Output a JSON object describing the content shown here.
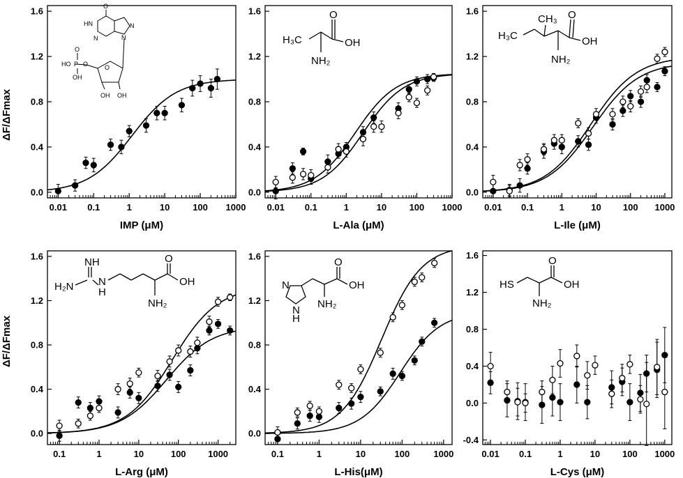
{
  "figure": {
    "ylabel": "ΔF/ΔFmax"
  },
  "chart_data": [
    {
      "type": "scatter",
      "xlabel": "IMP (μM)",
      "x_scale": "log",
      "xlim": [
        0.005,
        1000
      ],
      "ylim": [
        -0.05,
        1.65
      ],
      "x_ticks": [
        0.01,
        0.1,
        1,
        10,
        100,
        1000
      ],
      "x_tick_labels": [
        "0.01",
        "0.1",
        "1",
        "10",
        "100",
        "1000"
      ],
      "y_ticks": [
        0.0,
        0.4,
        0.8,
        1.2,
        1.6
      ],
      "y_tick_labels": [
        "0.0",
        "0.4",
        "0.8",
        "1.2",
        "1.6"
      ],
      "molecule": "IMP",
      "series": [
        {
          "marker": "filled",
          "x": [
            0.01,
            0.03,
            0.06,
            0.1,
            0.3,
            0.6,
            1,
            3,
            6,
            10,
            30,
            60,
            100,
            200,
            300
          ],
          "y": [
            0.01,
            0.06,
            0.26,
            0.24,
            0.42,
            0.4,
            0.54,
            0.59,
            0.7,
            0.7,
            0.77,
            0.92,
            0.96,
            0.92,
            1.0
          ],
          "err": [
            0.06,
            0.05,
            0.05,
            0.06,
            0.05,
            0.06,
            0.05,
            0.06,
            0.06,
            0.06,
            0.06,
            0.07,
            0.07,
            0.08,
            0.09
          ],
          "fit": {
            "max": 1.0,
            "ec50": 1.2,
            "n": 0.7
          }
        }
      ]
    },
    {
      "type": "scatter",
      "xlabel": "L-Ala (μM)",
      "x_scale": "log",
      "xlim": [
        0.005,
        1000
      ],
      "ylim": [
        -0.05,
        1.65
      ],
      "x_ticks": [
        0.01,
        0.1,
        1,
        10,
        100,
        1000
      ],
      "x_tick_labels": [
        "0.01",
        "0.1",
        "1",
        "10",
        "100",
        "1000"
      ],
      "y_ticks": [
        0.0,
        0.4,
        0.8,
        1.2,
        1.6
      ],
      "y_tick_labels": [
        "0.0",
        "0.4",
        "0.8",
        "1.2",
        "1.6"
      ],
      "molecule": "ala",
      "series": [
        {
          "marker": "filled",
          "x": [
            0.01,
            0.03,
            0.06,
            0.1,
            0.3,
            0.6,
            1,
            3,
            6,
            30,
            60,
            100,
            200,
            300
          ],
          "y": [
            0.01,
            0.21,
            0.36,
            0.12,
            0.27,
            0.34,
            0.4,
            0.53,
            0.66,
            0.74,
            0.91,
            0.98,
            1.0,
            1.01
          ],
          "err": [
            0.07,
            0.05,
            0.03,
            0.05,
            0.06,
            0.04,
            0.04,
            0.05,
            0.05,
            0.05,
            0.04,
            0.04,
            0.04,
            0.03
          ],
          "fit": {
            "max": 1.05,
            "ec50": 3.0,
            "n": 0.75
          }
        },
        {
          "marker": "open",
          "x": [
            0.01,
            0.03,
            0.06,
            0.1,
            0.3,
            0.6,
            1,
            3,
            6,
            10,
            30,
            60,
            100,
            200,
            300
          ],
          "y": [
            0.09,
            0.13,
            0.16,
            0.15,
            0.22,
            0.38,
            0.36,
            0.47,
            0.58,
            0.58,
            0.7,
            0.84,
            0.79,
            0.9,
            1.02
          ],
          "err": [
            0.05,
            0.05,
            0.05,
            0.05,
            0.05,
            0.05,
            0.05,
            0.06,
            0.05,
            0.05,
            0.05,
            0.04,
            0.04,
            0.04,
            0.03
          ],
          "fit": {
            "max": 1.05,
            "ec50": 1.8,
            "n": 0.75
          }
        }
      ]
    },
    {
      "type": "scatter",
      "xlabel": "L-Ile (μM)",
      "x_scale": "log",
      "xlim": [
        0.005,
        1600
      ],
      "ylim": [
        -0.05,
        1.65
      ],
      "x_ticks": [
        0.01,
        0.1,
        1,
        10,
        100,
        1000
      ],
      "x_tick_labels": [
        "0.01",
        "0.1",
        "1",
        "10",
        "100",
        "1000"
      ],
      "y_ticks": [
        0.0,
        0.4,
        0.8,
        1.2,
        1.6
      ],
      "y_tick_labels": [
        "0.0",
        "0.4",
        "0.8",
        "1.2",
        "1.6"
      ],
      "molecule": "ile",
      "series": [
        {
          "marker": "filled",
          "x": [
            0.01,
            0.03,
            0.06,
            0.1,
            0.3,
            0.6,
            1,
            3,
            6,
            10,
            30,
            60,
            100,
            200,
            300,
            600,
            1000
          ],
          "y": [
            0.01,
            0.02,
            0.06,
            0.21,
            0.36,
            0.43,
            0.4,
            0.45,
            0.42,
            0.66,
            0.6,
            0.72,
            0.85,
            0.8,
            0.99,
            0.93,
            1.07
          ],
          "err": [
            0.06,
            0.05,
            0.06,
            0.05,
            0.06,
            0.05,
            0.06,
            0.05,
            0.05,
            0.05,
            0.05,
            0.05,
            0.05,
            0.05,
            0.05,
            0.04,
            0.04
          ],
          "fit": {
            "max": 1.15,
            "ec50": 8.0,
            "n": 0.65
          }
        },
        {
          "marker": "open",
          "x": [
            0.01,
            0.03,
            0.06,
            0.1,
            0.3,
            0.6,
            1,
            3,
            6,
            10,
            30,
            60,
            100,
            200,
            300,
            600,
            1000
          ],
          "y": [
            0.09,
            0.01,
            0.24,
            0.29,
            0.38,
            0.46,
            0.46,
            0.61,
            0.52,
            0.69,
            0.69,
            0.8,
            0.76,
            0.89,
            0.93,
            1.18,
            1.24
          ],
          "err": [
            0.06,
            0.05,
            0.05,
            0.05,
            0.05,
            0.05,
            0.05,
            0.04,
            0.05,
            0.05,
            0.05,
            0.05,
            0.05,
            0.05,
            0.05,
            0.04,
            0.04
          ],
          "fit": {
            "max": 1.2,
            "ec50": 7.0,
            "n": 0.65
          }
        }
      ]
    },
    {
      "type": "scatter",
      "xlabel": "L-Arg (μM)",
      "x_scale": "log",
      "xlim": [
        0.05,
        2800
      ],
      "ylim": [
        -0.1,
        1.65
      ],
      "x_ticks": [
        0.1,
        1,
        10,
        100,
        1000
      ],
      "x_tick_labels": [
        "0.1",
        "1",
        "10",
        "100",
        "1000"
      ],
      "y_ticks": [
        0.0,
        0.4,
        0.8,
        1.2,
        1.6
      ],
      "y_tick_labels": [
        "0.0",
        "0.4",
        "0.8",
        "1.2",
        "1.6"
      ],
      "molecule": "arg",
      "series": [
        {
          "marker": "filled",
          "x": [
            0.1,
            0.3,
            0.6,
            1,
            3,
            6,
            10,
            30,
            60,
            100,
            200,
            300,
            600,
            1000,
            2000
          ],
          "y": [
            -0.02,
            0.28,
            0.23,
            0.29,
            0.19,
            0.37,
            0.32,
            0.43,
            0.53,
            0.42,
            0.57,
            0.77,
            0.93,
            0.99,
            0.93
          ],
          "err": [
            0.05,
            0.05,
            0.05,
            0.05,
            0.05,
            0.05,
            0.05,
            0.05,
            0.05,
            0.05,
            0.05,
            0.05,
            0.04,
            0.04,
            0.04
          ],
          "fit": {
            "max": 0.97,
            "ec50": 50,
            "n": 0.75
          }
        },
        {
          "marker": "open",
          "x": [
            0.1,
            0.3,
            0.6,
            1,
            3,
            6,
            10,
            30,
            60,
            100,
            200,
            300,
            600,
            1000,
            2000
          ],
          "y": [
            0.07,
            0.09,
            0.16,
            0.23,
            0.4,
            0.45,
            0.55,
            0.52,
            0.65,
            0.75,
            0.74,
            0.82,
            1.01,
            1.19,
            1.23
          ],
          "err": [
            0.05,
            0.04,
            0.04,
            0.04,
            0.05,
            0.05,
            0.04,
            0.05,
            0.05,
            0.05,
            0.05,
            0.05,
            0.05,
            0.04,
            0.03
          ],
          "fit": {
            "max": 1.33,
            "ec50": 70,
            "n": 0.75
          }
        }
      ]
    },
    {
      "type": "scatter",
      "xlabel": "L-His(μM)",
      "x_scale": "log",
      "xlim": [
        0.05,
        1600
      ],
      "ylim": [
        -0.1,
        1.65
      ],
      "x_ticks": [
        0.1,
        1,
        10,
        100,
        1000
      ],
      "x_tick_labels": [
        "0.1",
        "1",
        "10",
        "100",
        "1000"
      ],
      "y_ticks": [
        0.0,
        0.4,
        0.8,
        1.2,
        1.6
      ],
      "y_tick_labels": [
        "0.0",
        "0.4",
        "0.8",
        "1.2",
        "1.6"
      ],
      "molecule": "his",
      "series": [
        {
          "marker": "filled",
          "x": [
            0.1,
            0.3,
            0.6,
            1,
            3,
            6,
            10,
            30,
            60,
            100,
            200,
            300,
            600
          ],
          "y": [
            -0.05,
            0.09,
            0.16,
            0.15,
            0.23,
            0.27,
            0.33,
            0.38,
            0.54,
            0.52,
            0.66,
            0.83,
            1.0
          ],
          "err": [
            0.05,
            0.05,
            0.05,
            0.05,
            0.05,
            0.05,
            0.05,
            0.04,
            0.05,
            0.04,
            0.04,
            0.04,
            0.04
          ],
          "fit": {
            "max": 1.1,
            "ec50": 90,
            "n": 0.9
          }
        },
        {
          "marker": "open",
          "x": [
            0.1,
            0.3,
            0.6,
            1,
            3,
            6,
            10,
            30,
            60,
            100,
            200,
            300,
            600
          ],
          "y": [
            0.01,
            0.19,
            0.25,
            0.2,
            0.44,
            0.41,
            0.58,
            0.73,
            1.05,
            1.16,
            1.37,
            1.41,
            1.54
          ],
          "err": [
            0.05,
            0.04,
            0.04,
            0.04,
            0.04,
            0.04,
            0.04,
            0.04,
            0.04,
            0.04,
            0.04,
            0.04,
            0.04
          ],
          "fit": {
            "max": 1.7,
            "ec50": 32,
            "n": 0.9
          }
        }
      ]
    },
    {
      "type": "scatter",
      "xlabel": "L-Cys (μM)",
      "x_scale": "log",
      "xlim": [
        0.006,
        1600
      ],
      "ylim": [
        -0.45,
        1.65
      ],
      "x_ticks": [
        0.01,
        0.1,
        1,
        10,
        100,
        1000
      ],
      "x_tick_labels": [
        "0.01",
        "0.1",
        "1",
        "10",
        "100",
        "1000"
      ],
      "y_ticks": [
        -0.4,
        0.0,
        0.4,
        0.8,
        1.2,
        1.6
      ],
      "y_tick_labels": [
        "-0.4",
        "0.0",
        "0.4",
        "0.8",
        "1.2",
        "1.6"
      ],
      "molecule": "cys",
      "series": [
        {
          "marker": "filled",
          "x": [
            0.01,
            0.03,
            0.06,
            0.1,
            0.3,
            0.6,
            1,
            3,
            6,
            30,
            60,
            100,
            200,
            300,
            600,
            1000
          ],
          "y": [
            0.22,
            0.03,
            0.02,
            0.01,
            -0.02,
            0.06,
            0.01,
            0.2,
            0.01,
            0.17,
            0.23,
            0.01,
            0.11,
            0.32,
            0.36,
            0.52
          ],
          "err": [
            0.12,
            0.18,
            0.2,
            0.2,
            0.2,
            0.2,
            0.2,
            0.2,
            0.18,
            0.18,
            0.15,
            0.2,
            0.2,
            0.2,
            0.3,
            0.3
          ],
          "fit": null
        },
        {
          "marker": "open",
          "x": [
            0.01,
            0.03,
            0.06,
            0.1,
            0.3,
            0.6,
            1,
            3,
            6,
            10,
            30,
            60,
            100,
            200,
            300,
            600,
            1000
          ],
          "y": [
            0.4,
            0.12,
            0.01,
            0.0,
            0.12,
            0.25,
            0.43,
            0.51,
            0.3,
            0.41,
            0.1,
            0.27,
            0.42,
            0.04,
            -0.01,
            0.39,
            0.12
          ],
          "err": [
            0.15,
            0.12,
            0.15,
            0.1,
            0.12,
            0.15,
            0.15,
            0.12,
            0.15,
            0.1,
            0.15,
            0.15,
            0.1,
            0.15,
            0.45,
            0.3,
            0.4
          ],
          "fit": null
        }
      ]
    }
  ]
}
